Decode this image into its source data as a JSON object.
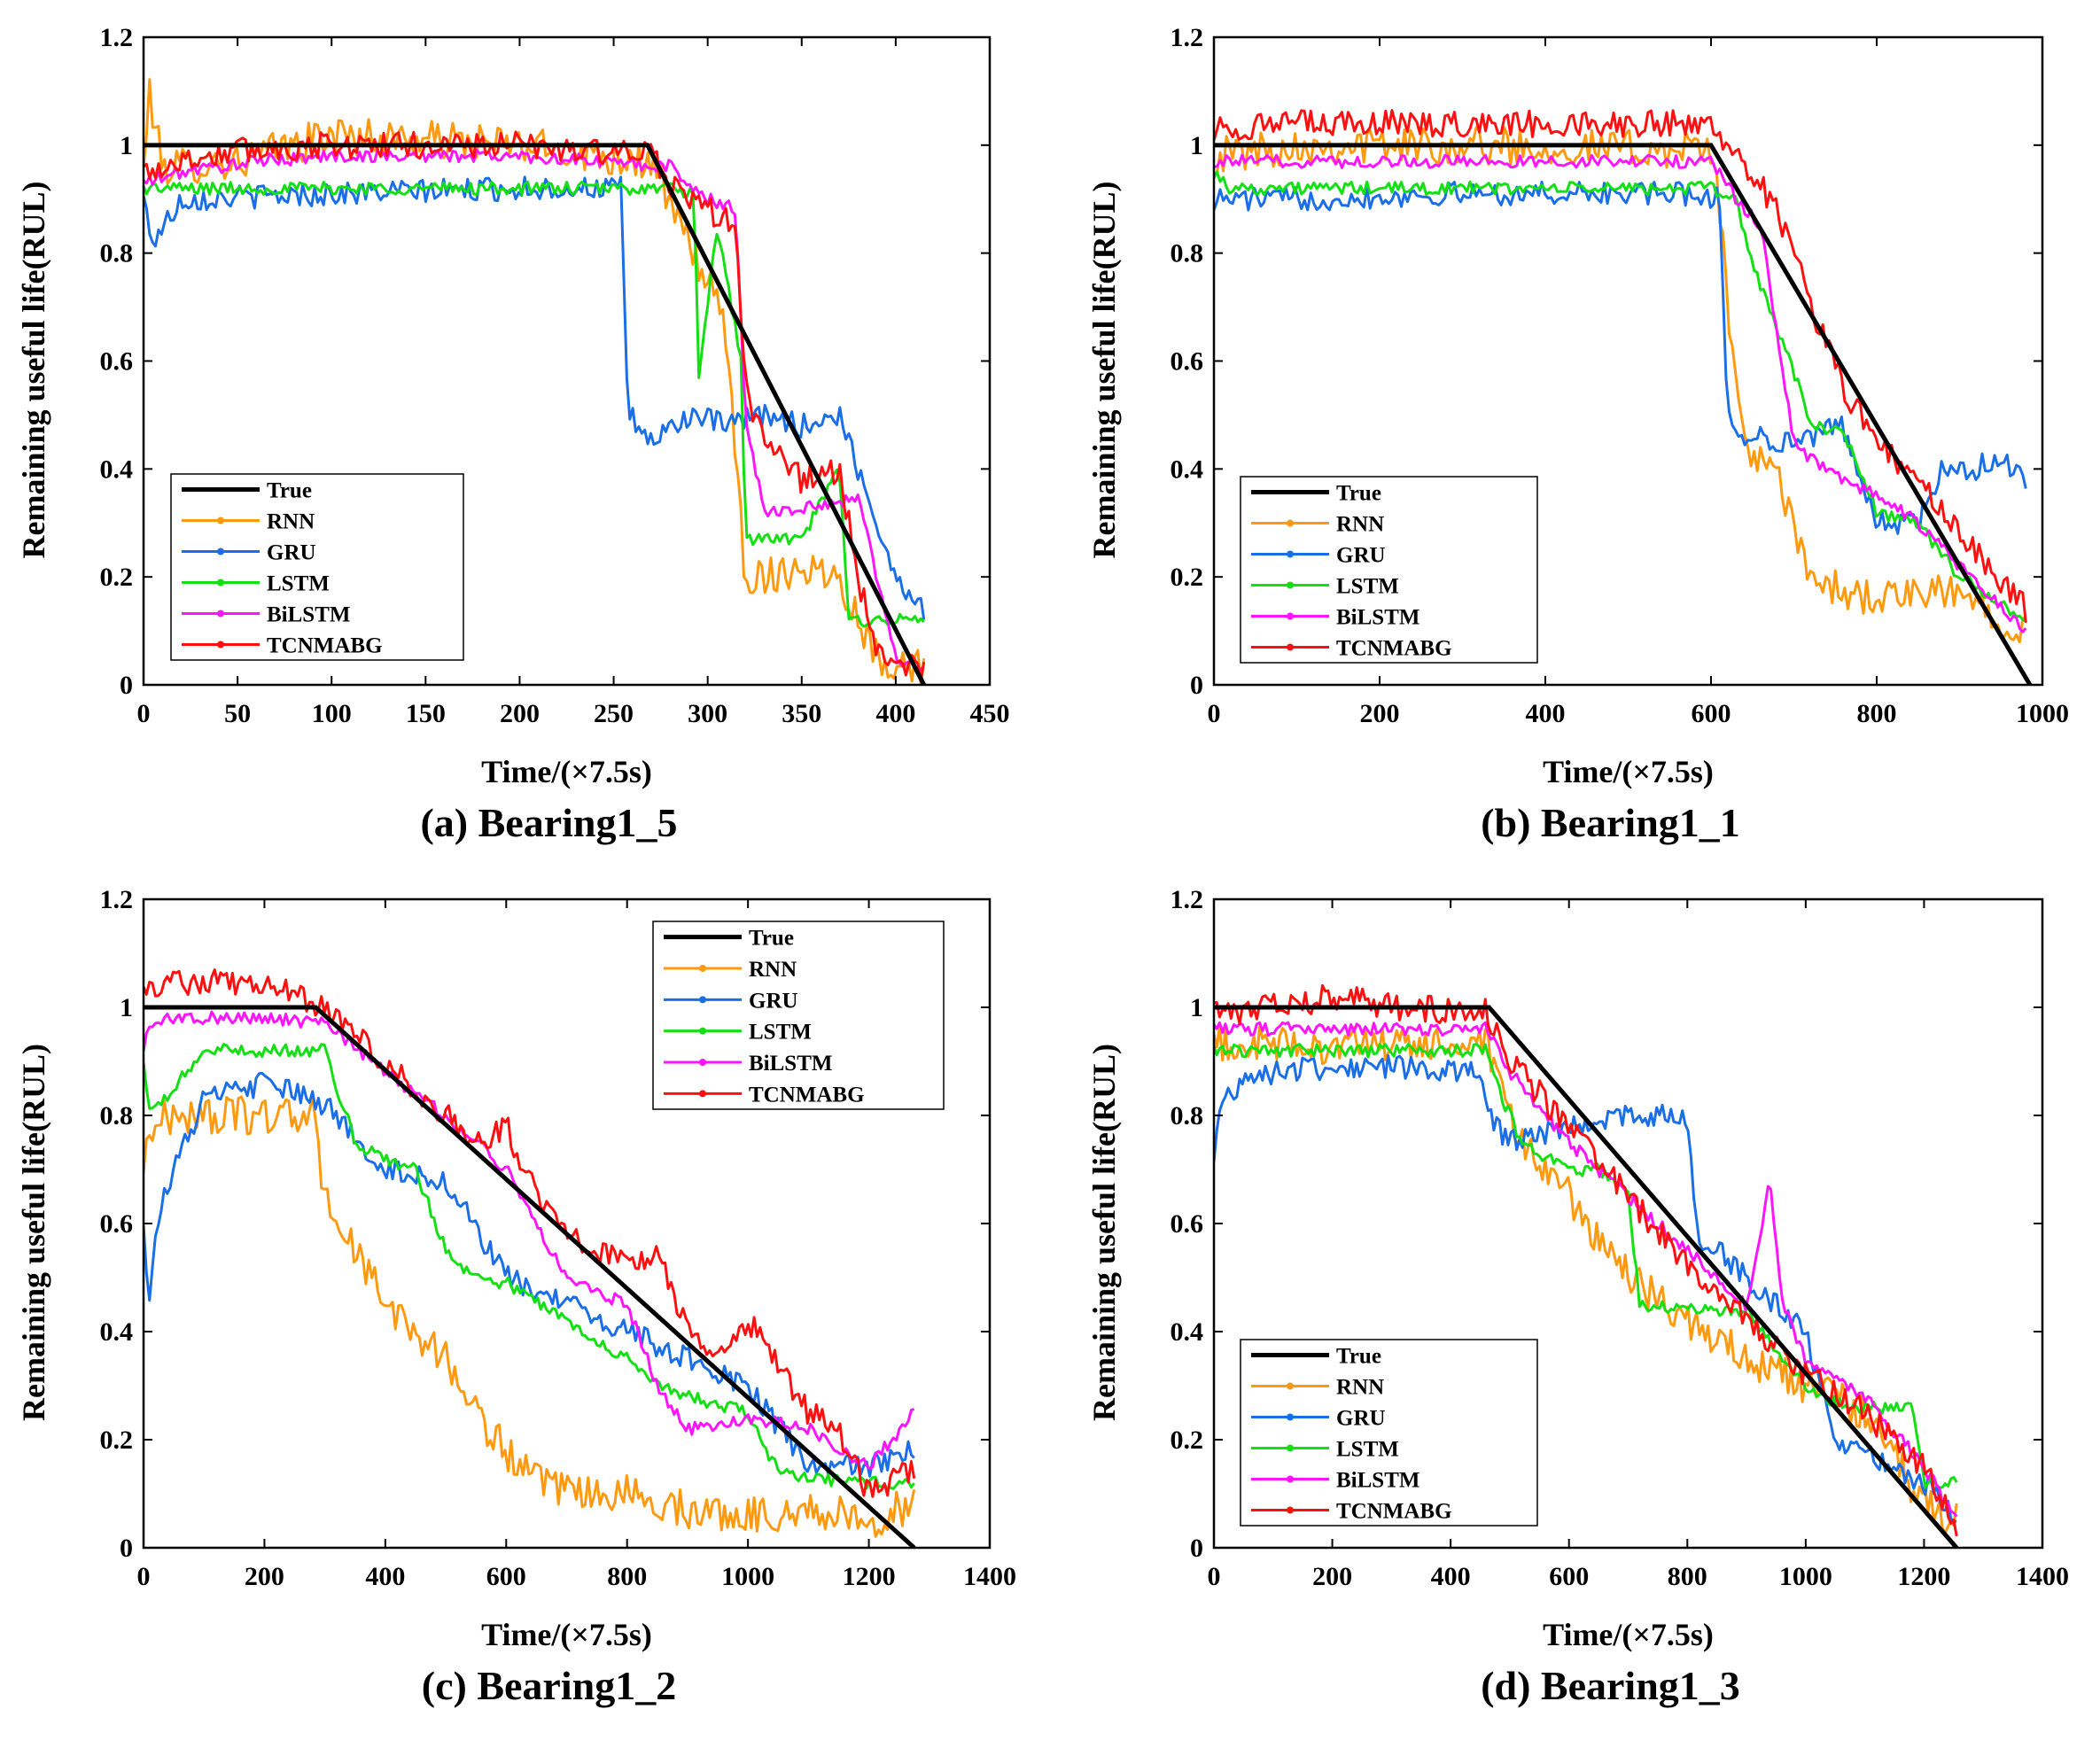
{
  "figure": {
    "series_colors": {
      "True": "#000000",
      "RNN": "#FF9A10",
      "GRU": "#1A6FE8",
      "LSTM": "#12E012",
      "BiLSTM": "#FF14FF",
      "TCNMABG": "#FF1010"
    }
  },
  "chart_data": [
    {
      "type": "line",
      "caption": "(a) Bearing1_5",
      "xlabel": "Time/(×7.5s)",
      "ylabel": "Remaining useful life(RUL)",
      "xlim": [
        0,
        450
      ],
      "ylim": [
        0,
        1.2
      ],
      "xticks": [
        "0",
        "50",
        "100",
        "150",
        "200",
        "250",
        "300",
        "350",
        "400",
        "450"
      ],
      "yticks": [
        "0",
        "0.2",
        "0.4",
        "0.6",
        "0.8",
        "1",
        "1.2"
      ],
      "legend_position": "bottom-left",
      "legend": [
        "True",
        "RNN",
        "GRU",
        "LSTM",
        "BiLSTM",
        "TCNMABG"
      ],
      "series": [
        {
          "name": "True",
          "x": [
            0,
            268,
            415
          ],
          "y": [
            1.0,
            1.0,
            0.0
          ]
        },
        {
          "name": "RNN",
          "x": [
            0,
            3,
            10,
            50,
            100,
            200,
            270,
            285,
            300,
            310,
            320,
            330,
            350,
            370,
            390,
            415
          ],
          "y": [
            0.95,
            1.1,
            0.96,
            0.97,
            1.02,
            1.0,
            0.97,
            0.85,
            0.75,
            0.65,
            0.2,
            0.2,
            0.22,
            0.2,
            0.05,
            0.03
          ]
        },
        {
          "name": "GRU",
          "x": [
            0,
            5,
            20,
            100,
            200,
            254,
            256,
            258,
            270,
            290,
            310,
            330,
            350,
            370,
            390,
            400,
            415
          ],
          "y": [
            0.9,
            0.82,
            0.9,
            0.91,
            0.92,
            0.92,
            0.65,
            0.5,
            0.45,
            0.5,
            0.48,
            0.5,
            0.48,
            0.5,
            0.3,
            0.2,
            0.14
          ]
        },
        {
          "name": "LSTM",
          "x": [
            0,
            20,
            100,
            280,
            293,
            295,
            305,
            318,
            320,
            330,
            350,
            370,
            375,
            385,
            415
          ],
          "y": [
            0.92,
            0.92,
            0.92,
            0.92,
            0.91,
            0.55,
            0.85,
            0.6,
            0.27,
            0.27,
            0.27,
            0.4,
            0.12,
            0.12,
            0.12
          ]
        },
        {
          "name": "BiLSTM",
          "x": [
            0,
            20,
            60,
            100,
            200,
            280,
            300,
            315,
            320,
            330,
            360,
            380,
            400,
            415
          ],
          "y": [
            0.93,
            0.95,
            0.97,
            0.98,
            0.98,
            0.96,
            0.9,
            0.88,
            0.5,
            0.32,
            0.33,
            0.35,
            0.05,
            0.03
          ]
        },
        {
          "name": "TCNMABG",
          "x": [
            0,
            20,
            50,
            100,
            200,
            270,
            280,
            300,
            315,
            320,
            330,
            350,
            370,
            380,
            390,
            400,
            415
          ],
          "y": [
            0.95,
            0.97,
            0.99,
            1.0,
            1.0,
            0.98,
            0.93,
            0.88,
            0.85,
            0.55,
            0.45,
            0.38,
            0.4,
            0.2,
            0.05,
            0.05,
            0.02
          ]
        }
      ]
    },
    {
      "type": "line",
      "caption": "(b) Bearing1_1",
      "xlabel": "Time/(×7.5s)",
      "ylabel": "Remaining useful life(RUL)",
      "xlim": [
        0,
        1000
      ],
      "ylim": [
        0,
        1.2
      ],
      "xticks": [
        "0",
        "200",
        "400",
        "600",
        "800",
        "1000"
      ],
      "yticks": [
        "0",
        "0.2",
        "0.4",
        "0.6",
        "0.8",
        "1",
        "1.2"
      ],
      "legend_position": "bottom-left",
      "legend": [
        "True",
        "RNN",
        "GRU",
        "LSTM",
        "BiLSTM",
        "TCNMABG"
      ],
      "series": [
        {
          "name": "True",
          "x": [
            0,
            600,
            985
          ],
          "y": [
            1.0,
            1.0,
            0.0
          ]
        },
        {
          "name": "RNN",
          "x": [
            0,
            100,
            300,
            600,
            615,
            625,
            640,
            680,
            720,
            760,
            800,
            900,
            980
          ],
          "y": [
            0.98,
            1.0,
            1.0,
            0.99,
            0.85,
            0.6,
            0.45,
            0.38,
            0.2,
            0.17,
            0.16,
            0.17,
            0.1
          ]
        },
        {
          "name": "GRU",
          "x": [
            0,
            100,
            300,
            580,
            610,
            620,
            640,
            700,
            760,
            800,
            850,
            880,
            900,
            950,
            980
          ],
          "y": [
            0.9,
            0.9,
            0.91,
            0.91,
            0.9,
            0.5,
            0.46,
            0.45,
            0.48,
            0.3,
            0.3,
            0.4,
            0.39,
            0.42,
            0.38
          ]
        },
        {
          "name": "LSTM",
          "x": [
            0,
            20,
            100,
            600,
            630,
            650,
            700,
            720,
            760,
            800,
            850,
            900,
            980
          ],
          "y": [
            0.95,
            0.92,
            0.92,
            0.92,
            0.9,
            0.78,
            0.58,
            0.48,
            0.47,
            0.32,
            0.3,
            0.2,
            0.12
          ]
        },
        {
          "name": "BiLSTM",
          "x": [
            0,
            100,
            300,
            600,
            630,
            660,
            680,
            700,
            720,
            760,
            800,
            850,
            900,
            980
          ],
          "y": [
            0.97,
            0.97,
            0.97,
            0.97,
            0.9,
            0.85,
            0.65,
            0.45,
            0.42,
            0.38,
            0.35,
            0.3,
            0.22,
            0.1
          ]
        },
        {
          "name": "TCNMABG",
          "x": [
            0,
            100,
            300,
            600,
            620,
            650,
            680,
            700,
            720,
            760,
            800,
            850,
            900,
            980
          ],
          "y": [
            1.03,
            1.04,
            1.04,
            1.04,
            1.0,
            0.95,
            0.88,
            0.8,
            0.7,
            0.55,
            0.45,
            0.38,
            0.28,
            0.14
          ]
        }
      ]
    },
    {
      "type": "line",
      "caption": "(c) Bearing1_2",
      "xlabel": "Time/(×7.5s)",
      "ylabel": "Remaining useful life(RUL)",
      "xlim": [
        0,
        1400
      ],
      "ylim": [
        0,
        1.2
      ],
      "xticks": [
        "0",
        "200",
        "400",
        "600",
        "800",
        "1000",
        "1200",
        "1400"
      ],
      "yticks": [
        "0",
        "0.2",
        "0.4",
        "0.6",
        "0.8",
        "1",
        "1.2"
      ],
      "legend_position": "top-right",
      "legend": [
        "True",
        "RNN",
        "GRU",
        "LSTM",
        "BiLSTM",
        "TCNMABG"
      ],
      "series": [
        {
          "name": "True",
          "x": [
            0,
            285,
            1275
          ],
          "y": [
            1.0,
            1.0,
            0.0
          ]
        },
        {
          "name": "RNN",
          "x": [
            0,
            10,
            50,
            200,
            280,
            300,
            350,
            400,
            450,
            500,
            550,
            600,
            650,
            700,
            800,
            900,
            1000,
            1100,
            1200,
            1275
          ],
          "y": [
            0.7,
            0.78,
            0.8,
            0.8,
            0.8,
            0.65,
            0.55,
            0.45,
            0.4,
            0.35,
            0.25,
            0.18,
            0.12,
            0.1,
            0.1,
            0.07,
            0.06,
            0.07,
            0.05,
            0.08
          ]
        },
        {
          "name": "GRU",
          "x": [
            0,
            10,
            20,
            50,
            100,
            200,
            300,
            400,
            500,
            600,
            700,
            800,
            900,
            1000,
            1100,
            1200,
            1275
          ],
          "y": [
            0.6,
            0.45,
            0.6,
            0.7,
            0.83,
            0.86,
            0.82,
            0.7,
            0.68,
            0.5,
            0.45,
            0.4,
            0.35,
            0.3,
            0.15,
            0.15,
            0.18
          ]
        },
        {
          "name": "LSTM",
          "x": [
            0,
            10,
            50,
            100,
            300,
            350,
            400,
            450,
            500,
            550,
            600,
            700,
            800,
            850,
            900,
            1000,
            1050,
            1100,
            1200,
            1275
          ],
          "y": [
            0.9,
            0.8,
            0.85,
            0.92,
            0.92,
            0.75,
            0.72,
            0.7,
            0.55,
            0.5,
            0.49,
            0.42,
            0.35,
            0.3,
            0.28,
            0.25,
            0.14,
            0.13,
            0.12,
            0.12
          ]
        },
        {
          "name": "BiLSTM",
          "x": [
            0,
            10,
            50,
            100,
            200,
            300,
            400,
            500,
            600,
            700,
            800,
            850,
            900,
            1000,
            1100,
            1200,
            1275
          ],
          "y": [
            0.92,
            0.97,
            0.98,
            0.98,
            0.98,
            0.97,
            0.88,
            0.8,
            0.7,
            0.5,
            0.45,
            0.3,
            0.22,
            0.24,
            0.22,
            0.15,
            0.25
          ]
        },
        {
          "name": "TCNMABG",
          "x": [
            0,
            100,
            200,
            300,
            350,
            400,
            450,
            500,
            550,
            600,
            650,
            700,
            800,
            850,
            900,
            950,
            1000,
            1100,
            1150,
            1200,
            1275
          ],
          "y": [
            1.04,
            1.05,
            1.04,
            1.0,
            0.95,
            0.9,
            0.85,
            0.8,
            0.75,
            0.78,
            0.65,
            0.58,
            0.52,
            0.55,
            0.4,
            0.35,
            0.42,
            0.25,
            0.22,
            0.1,
            0.15
          ]
        }
      ]
    },
    {
      "type": "line",
      "caption": "(d) Bearing1_3",
      "xlabel": "Time/(×7.5s)",
      "ylabel": "Remaining useful life(RUL)",
      "xlim": [
        0,
        1400
      ],
      "ylim": [
        0,
        1.2
      ],
      "xticks": [
        "0",
        "200",
        "400",
        "600",
        "800",
        "1000",
        "1200",
        "1400"
      ],
      "yticks": [
        "0",
        "0.2",
        "0.4",
        "0.6",
        "0.8",
        "1",
        "1.2"
      ],
      "legend_position": "bottom-left",
      "legend": [
        "True",
        "RNN",
        "GRU",
        "LSTM",
        "BiLSTM",
        "TCNMABG"
      ],
      "series": [
        {
          "name": "True",
          "x": [
            0,
            465,
            1255
          ],
          "y": [
            1.0,
            1.0,
            0.0
          ]
        },
        {
          "name": "RNN",
          "x": [
            0,
            100,
            300,
            460,
            480,
            520,
            560,
            600,
            700,
            800,
            900,
            1000,
            1100,
            1200,
            1255
          ],
          "y": [
            0.93,
            0.93,
            0.93,
            0.93,
            0.85,
            0.75,
            0.7,
            0.65,
            0.5,
            0.42,
            0.35,
            0.3,
            0.25,
            0.08,
            0.05
          ]
        },
        {
          "name": "GRU",
          "x": [
            0,
            10,
            50,
            100,
            200,
            300,
            400,
            450,
            460,
            500,
            600,
            700,
            800,
            820,
            850,
            900,
            1000,
            1050,
            1100,
            1200,
            1255
          ],
          "y": [
            0.7,
            0.82,
            0.87,
            0.88,
            0.89,
            0.89,
            0.88,
            0.88,
            0.8,
            0.75,
            0.78,
            0.8,
            0.8,
            0.55,
            0.55,
            0.5,
            0.4,
            0.2,
            0.18,
            0.12,
            0.06
          ]
        },
        {
          "name": "LSTM",
          "x": [
            0,
            100,
            460,
            480,
            520,
            600,
            650,
            700,
            720,
            800,
            900,
            1000,
            1050,
            1100,
            1180,
            1200,
            1255
          ],
          "y": [
            0.92,
            0.92,
            0.92,
            0.85,
            0.75,
            0.7,
            0.7,
            0.65,
            0.45,
            0.44,
            0.44,
            0.3,
            0.27,
            0.26,
            0.26,
            0.12,
            0.12
          ]
        },
        {
          "name": "BiLSTM",
          "x": [
            0,
            100,
            460,
            500,
            600,
            700,
            800,
            900,
            940,
            960,
            1000,
            1100,
            1200,
            1255
          ],
          "y": [
            0.96,
            0.96,
            0.96,
            0.88,
            0.75,
            0.65,
            0.55,
            0.45,
            0.68,
            0.45,
            0.35,
            0.28,
            0.15,
            0.05
          ]
        },
        {
          "name": "TCNMABG",
          "x": [
            0,
            100,
            200,
            300,
            460,
            500,
            600,
            700,
            800,
            900,
            1000,
            1100,
            1200,
            1255
          ],
          "y": [
            0.99,
            1.0,
            1.02,
            1.0,
            0.99,
            0.9,
            0.78,
            0.65,
            0.52,
            0.42,
            0.32,
            0.25,
            0.15,
            0.04
          ]
        }
      ]
    }
  ]
}
